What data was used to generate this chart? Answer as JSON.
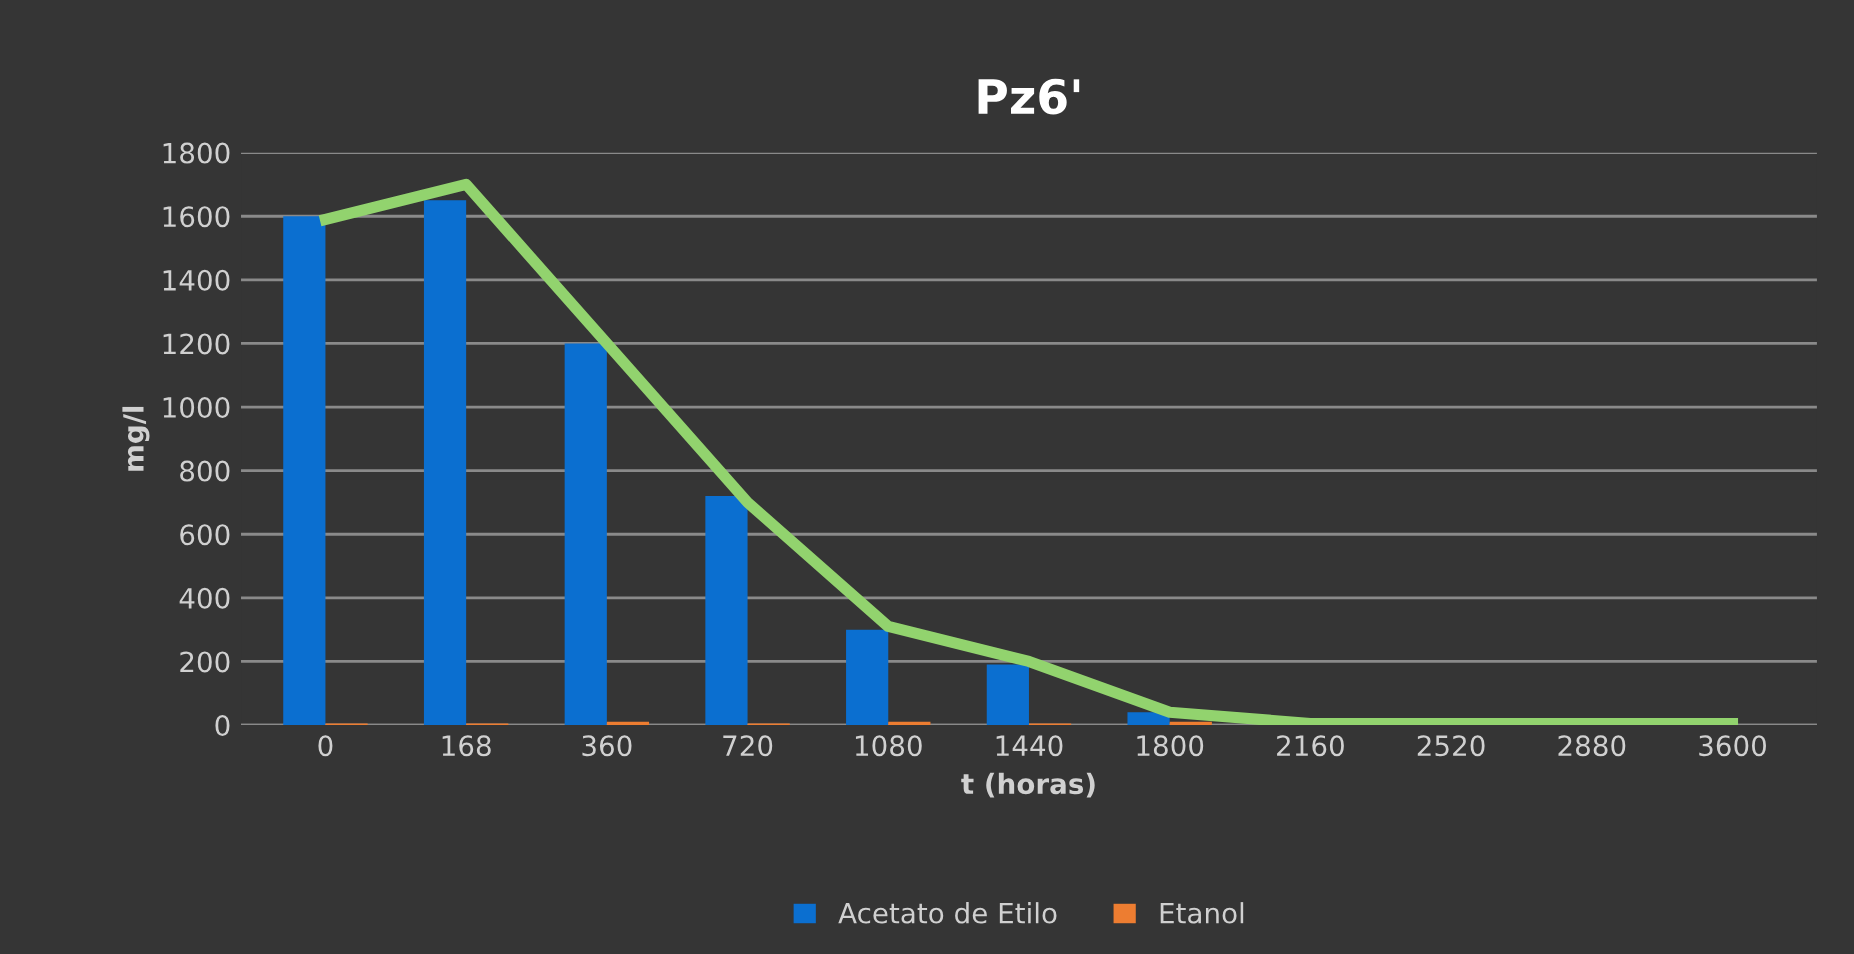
{
  "chart_data": {
    "type": "bar",
    "title": "Pz6'",
    "xlabel": "t (horas)",
    "ylabel": "mg/l",
    "categories": [
      "0",
      "168",
      "360",
      "720",
      "1080",
      "1440",
      "1800",
      "2160",
      "2520",
      "2880",
      "3600"
    ],
    "series": [
      {
        "name": "Acetato de Etilo",
        "color": "#0b6fd0",
        "values": [
          1600,
          1650,
          1200,
          720,
          300,
          190,
          40,
          0,
          0,
          0,
          0
        ]
      },
      {
        "name": "Etanol",
        "color": "#ed7d31",
        "values": [
          5,
          5,
          10,
          5,
          10,
          5,
          10,
          0,
          0,
          0,
          0
        ]
      },
      {
        "type": "line",
        "color": "#92d36e",
        "values": [
          1590,
          1700,
          1200,
          700,
          310,
          200,
          40,
          5,
          5,
          5,
          5
        ]
      }
    ],
    "ylim": [
      0,
      1800
    ],
    "yticks": [
      0,
      200,
      400,
      600,
      800,
      1000,
      1200,
      1400,
      1600,
      1800
    ],
    "grid": "y",
    "legend": "bottom"
  }
}
